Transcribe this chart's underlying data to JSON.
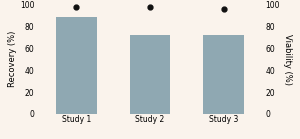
{
  "categories": [
    "Study 1",
    "Study 2",
    "Study 3"
  ],
  "bar_values": [
    88,
    72,
    72
  ],
  "dot_values": [
    97,
    97,
    96
  ],
  "bar_color": "#8fa8b2",
  "dot_color": "#111111",
  "left_ylabel": "Recovery (%)",
  "right_ylabel": "Viability (%)",
  "ylim": [
    0,
    100
  ],
  "yticks": [
    0,
    20,
    40,
    60,
    80,
    100
  ],
  "background_color": "#faf3ec",
  "bar_width": 0.55,
  "label_fontsize": 6,
  "tick_fontsize": 5.5,
  "dot_size": 3.5
}
